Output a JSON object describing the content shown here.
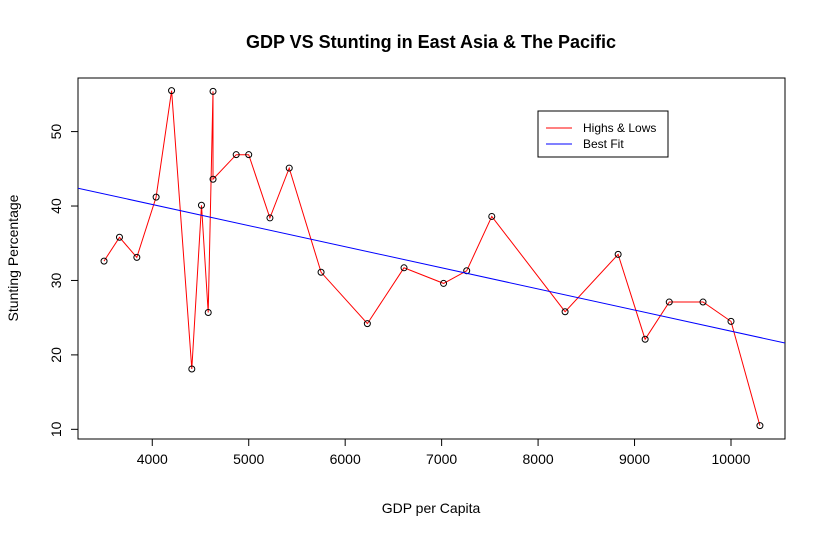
{
  "chart_data": {
    "type": "line",
    "title": "GDP VS Stunting in East Asia & The Pacific",
    "xlabel": "GDP per Capita",
    "ylabel": "Stunting Percentage",
    "xlim": [
      3230,
      10560
    ],
    "ylim": [
      8.7,
      57.2
    ],
    "xticks": [
      4000,
      5000,
      6000,
      7000,
      8000,
      9000,
      10000
    ],
    "yticks": [
      10,
      20,
      30,
      40,
      50
    ],
    "grid": false,
    "legend_position": "top-right",
    "series": [
      {
        "name": "Highs & Lows",
        "color": "#ff0000",
        "marker": "open-circle",
        "points": [
          [
            3500,
            32.6
          ],
          [
            3660,
            35.8
          ],
          [
            3840,
            33.1
          ],
          [
            4040,
            41.2
          ],
          [
            4200,
            55.5
          ],
          [
            4410,
            18.1
          ],
          [
            4510,
            40.1
          ],
          [
            4580,
            25.7
          ],
          [
            4630,
            55.4
          ],
          [
            4630,
            43.6
          ],
          [
            4870,
            46.9
          ],
          [
            5000,
            46.9
          ],
          [
            5220,
            38.4
          ],
          [
            5420,
            45.1
          ],
          [
            5750,
            31.1
          ],
          [
            6230,
            24.2
          ],
          [
            6610,
            31.7
          ],
          [
            7020,
            29.6
          ],
          [
            7260,
            31.3
          ],
          [
            7520,
            38.6
          ],
          [
            8280,
            25.8
          ],
          [
            8830,
            33.5
          ],
          [
            9110,
            22.1
          ],
          [
            9360,
            27.1
          ],
          [
            9710,
            27.1
          ],
          [
            10000,
            24.5
          ],
          [
            10300,
            10.5
          ]
        ]
      },
      {
        "name": "Best Fit",
        "color": "#0000ff",
        "type": "line",
        "points": [
          [
            3230,
            42.4
          ],
          [
            10560,
            21.6
          ]
        ]
      }
    ]
  }
}
